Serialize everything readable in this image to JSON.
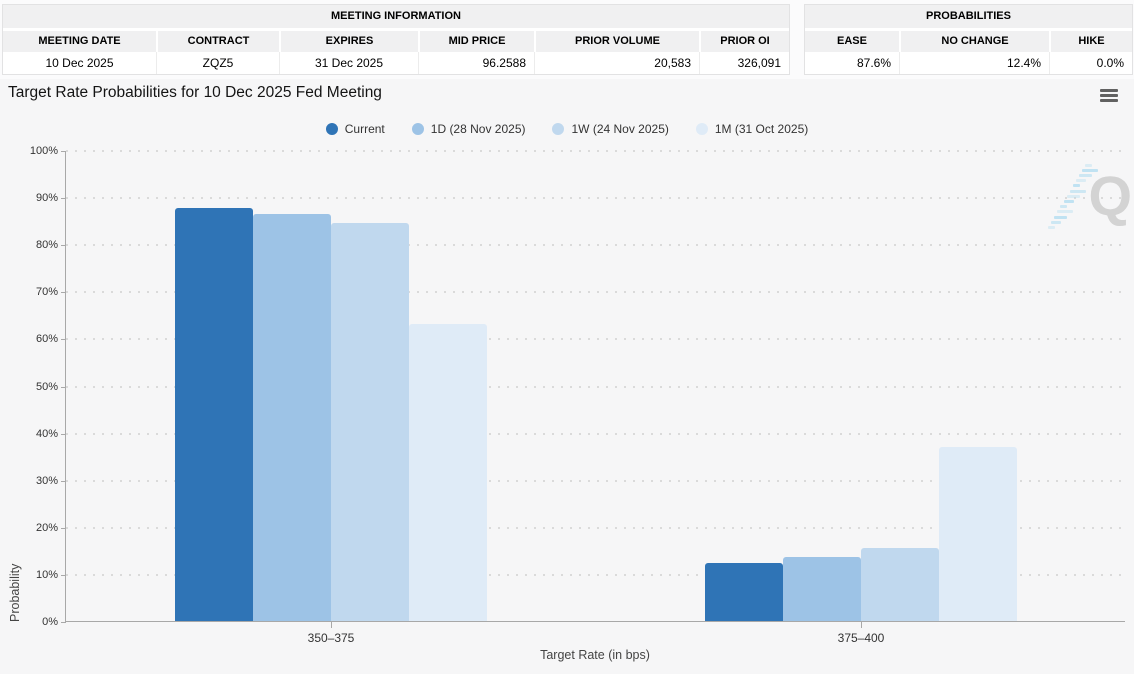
{
  "tables": {
    "meeting": {
      "title": "MEETING INFORMATION",
      "columns": [
        "MEETING DATE",
        "CONTRACT",
        "EXPIRES",
        "MID PRICE",
        "PRIOR VOLUME",
        "PRIOR OI"
      ],
      "values": [
        "10 Dec 2025",
        "ZQZ5",
        "31 Dec 2025",
        "96.2588",
        "20,583",
        "326,091"
      ]
    },
    "probabilities": {
      "title": "PROBABILITIES",
      "columns": [
        "EASE",
        "NO CHANGE",
        "HIKE"
      ],
      "values": [
        "87.6%",
        "12.4%",
        "0.0%"
      ]
    }
  },
  "icons": {
    "chart_menu": "hamburger-menu"
  },
  "watermark": {
    "letter": "Q"
  },
  "chart_data": {
    "type": "bar",
    "title": "Target Rate Probabilities for 10 Dec 2025 Fed Meeting",
    "categories": [
      "350–375",
      "375–400"
    ],
    "series": [
      {
        "name": "Current",
        "color": "#2f74b6",
        "values": [
          87.6,
          12.4
        ]
      },
      {
        "name": "1D (28 Nov 2025)",
        "color": "#9dc3e6",
        "values": [
          86.4,
          13.5
        ]
      },
      {
        "name": "1W (24 Nov 2025)",
        "color": "#c0d8ee",
        "values": [
          84.6,
          15.4
        ]
      },
      {
        "name": "1M (31 Oct 2025)",
        "color": "#dfebf7",
        "values": [
          63.0,
          37.0
        ]
      }
    ],
    "xlabel": "Target Rate (in bps)",
    "ylabel": "Probability",
    "ylim": [
      0,
      100
    ],
    "ytick_step": 10,
    "ytick_suffix": "%",
    "grid": "dotted-horizontal",
    "legend_position": "top-center"
  }
}
